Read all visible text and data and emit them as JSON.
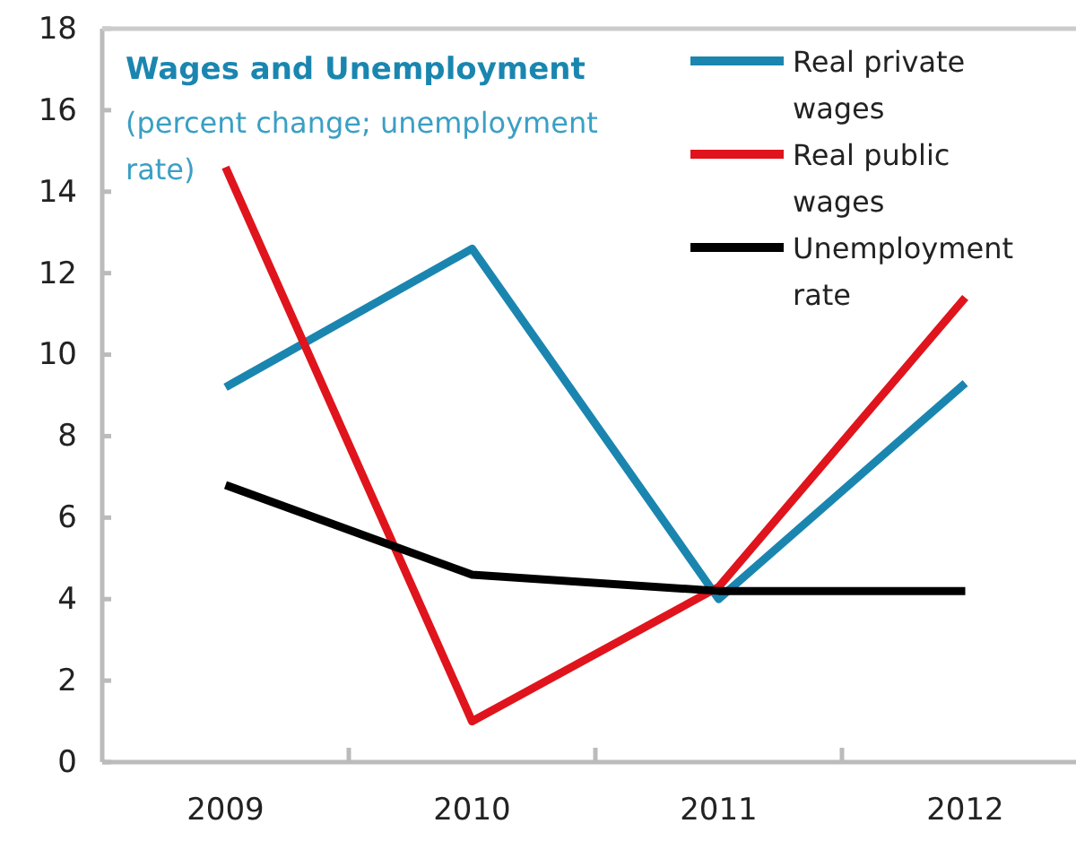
{
  "chart_data": {
    "type": "line",
    "title": "Wages and Unemployment",
    "subtitle": "(percent change; unemployment rate)",
    "categories": [
      "2009",
      "2010",
      "2011",
      "2012"
    ],
    "series": [
      {
        "name": "Real private wages",
        "color": "#1a86b0",
        "values": [
          9.2,
          12.6,
          4.0,
          9.3
        ]
      },
      {
        "name": "Real public wages",
        "color": "#e0141c",
        "values": [
          14.6,
          1.0,
          4.3,
          11.4
        ]
      },
      {
        "name": "Unemployment rate",
        "color": "#000000",
        "values": [
          6.8,
          4.6,
          4.2,
          4.2
        ]
      }
    ],
    "ylim": [
      0,
      18
    ],
    "yticks": [
      0,
      2,
      4,
      6,
      8,
      10,
      12,
      14,
      16,
      18
    ],
    "grid": false,
    "legend": "top right",
    "marker": "none",
    "line_style": "solid"
  }
}
